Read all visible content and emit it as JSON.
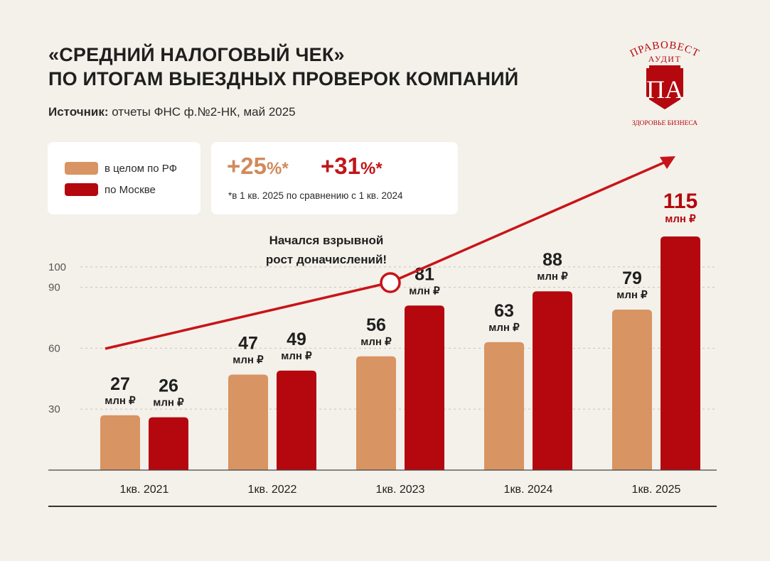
{
  "title_lines": [
    "«СРЕДНИЙ НАЛОГОВЫЙ ЧЕК»",
    "ПО ИТОГАМ ВЫЕЗДНЫХ ПРОВЕРОК КОМПАНИЙ"
  ],
  "source": {
    "label": "Источник:",
    "text": " отчеты ФНС ф.№2-НК, май 2025"
  },
  "logo": {
    "top": "ПРАВОВЕСТ",
    "sub": "АУДИТ",
    "monogram": "ПА",
    "tagline": "ЗДОРОВЬЕ БИЗНЕСА"
  },
  "colors": {
    "rf": "#d89463",
    "moscow": "#b5070e",
    "arrow": "#c81419",
    "growth_rf": "#d08a5a",
    "growth_moscow": "#c0161b"
  },
  "growth": {
    "rf_value": "+25",
    "moscow_value": "+31",
    "pct": "%*",
    "footnote": "*в 1 кв. 2025 по сравнению с 1 кв. 2024"
  },
  "annotation": [
    "Начался взрывной",
    "рост доначислений!"
  ],
  "chart_data": {
    "type": "bar",
    "categories": [
      "1кв. 2021",
      "1кв. 2022",
      "1кв. 2023",
      "1кв. 2024",
      "1кв. 2025"
    ],
    "series": [
      {
        "name": "в целом по РФ",
        "values": [
          27,
          47,
          56,
          63,
          79
        ]
      },
      {
        "name": "по Москве",
        "values": [
          26,
          49,
          81,
          88,
          115
        ]
      }
    ],
    "unit_label": "млн ₽",
    "y_ticks": [
      30,
      60,
      90,
      100
    ],
    "ylim": [
      0,
      118
    ],
    "grid": true,
    "legend": "top-left"
  }
}
